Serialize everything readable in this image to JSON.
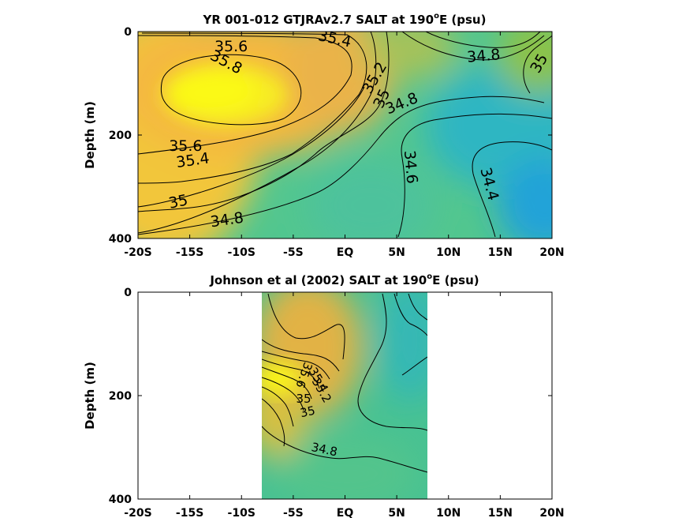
{
  "chart_data": [
    {
      "type": "heatmap",
      "title_main": "YR 001-012 GTJRAv2.7 SALT at 190",
      "title_sup": "o",
      "title_end": "E (psu)",
      "ylabel": "Depth (m)",
      "xlim": [
        -20,
        20
      ],
      "ylim": [
        0,
        400
      ],
      "y_reversed": true,
      "x_ticks": [
        -20,
        -15,
        -10,
        -5,
        0,
        5,
        10,
        15,
        20
      ],
      "x_tick_labels": [
        "-20S",
        "-15S",
        "-10S",
        "-5S",
        "EQ",
        "5N",
        "10N",
        "15N",
        "20N"
      ],
      "y_ticks": [
        0,
        200,
        400
      ],
      "y_tick_labels": [
        "0",
        "200",
        "400"
      ],
      "data_xrange": [
        -20,
        20
      ],
      "contour_labels": [
        {
          "text": "35.6",
          "x": -11,
          "y": 30,
          "rot": 0
        },
        {
          "text": "35.4",
          "x": -1,
          "y": 15,
          "rot": 12
        },
        {
          "text": "35.8",
          "x": -11.5,
          "y": 60,
          "rot": 28
        },
        {
          "text": "35.2",
          "x": 2.9,
          "y": 90,
          "rot": -60
        },
        {
          "text": "35",
          "x": 3.6,
          "y": 130,
          "rot": -65
        },
        {
          "text": "34.8",
          "x": 5.5,
          "y": 140,
          "rot": -22
        },
        {
          "text": "34.8",
          "x": 13.4,
          "y": 48,
          "rot": -5
        },
        {
          "text": "35",
          "x": 18.8,
          "y": 62,
          "rot": -60
        },
        {
          "text": "35.6",
          "x": -15.4,
          "y": 222,
          "rot": 0
        },
        {
          "text": "35.4",
          "x": -14.7,
          "y": 250,
          "rot": -8
        },
        {
          "text": "34.6",
          "x": 6.3,
          "y": 262,
          "rot": 85
        },
        {
          "text": "34.4",
          "x": 13.9,
          "y": 295,
          "rot": 75
        },
        {
          "text": "35",
          "x": -16.1,
          "y": 330,
          "rot": -12
        },
        {
          "text": "34.8",
          "x": -11.4,
          "y": 365,
          "rot": -8
        }
      ]
    },
    {
      "type": "heatmap",
      "title_main": "Johnson et al (2002) SALT at 190",
      "title_sup": "o",
      "title_end": "E (psu)",
      "ylabel": "Depth (m)",
      "xlim": [
        -20,
        20
      ],
      "ylim": [
        0,
        400
      ],
      "y_reversed": true,
      "x_ticks": [
        -20,
        -15,
        -10,
        -5,
        0,
        5,
        10,
        15,
        20
      ],
      "x_tick_labels": [
        "-20S",
        "-15S",
        "-10S",
        "-5S",
        "EQ",
        "5N",
        "10N",
        "15N",
        "20N"
      ],
      "y_ticks": [
        0,
        200,
        400
      ],
      "y_tick_labels": [
        "0",
        "200",
        "400"
      ],
      "data_xrange": [
        -8,
        8
      ],
      "contour_labels": [
        {
          "text": "35.6",
          "x": -4.0,
          "y": 160,
          "rot": 110
        },
        {
          "text": "35.4",
          "x": -2.6,
          "y": 170,
          "rot": 60
        },
        {
          "text": "35.2",
          "x": -2.3,
          "y": 190,
          "rot": 60
        },
        {
          "text": "35",
          "x": -4.0,
          "y": 207,
          "rot": 0
        },
        {
          "text": "35",
          "x": -3.6,
          "y": 232,
          "rot": -12
        },
        {
          "text": "34.8",
          "x": -2.0,
          "y": 305,
          "rot": 12
        }
      ]
    }
  ]
}
